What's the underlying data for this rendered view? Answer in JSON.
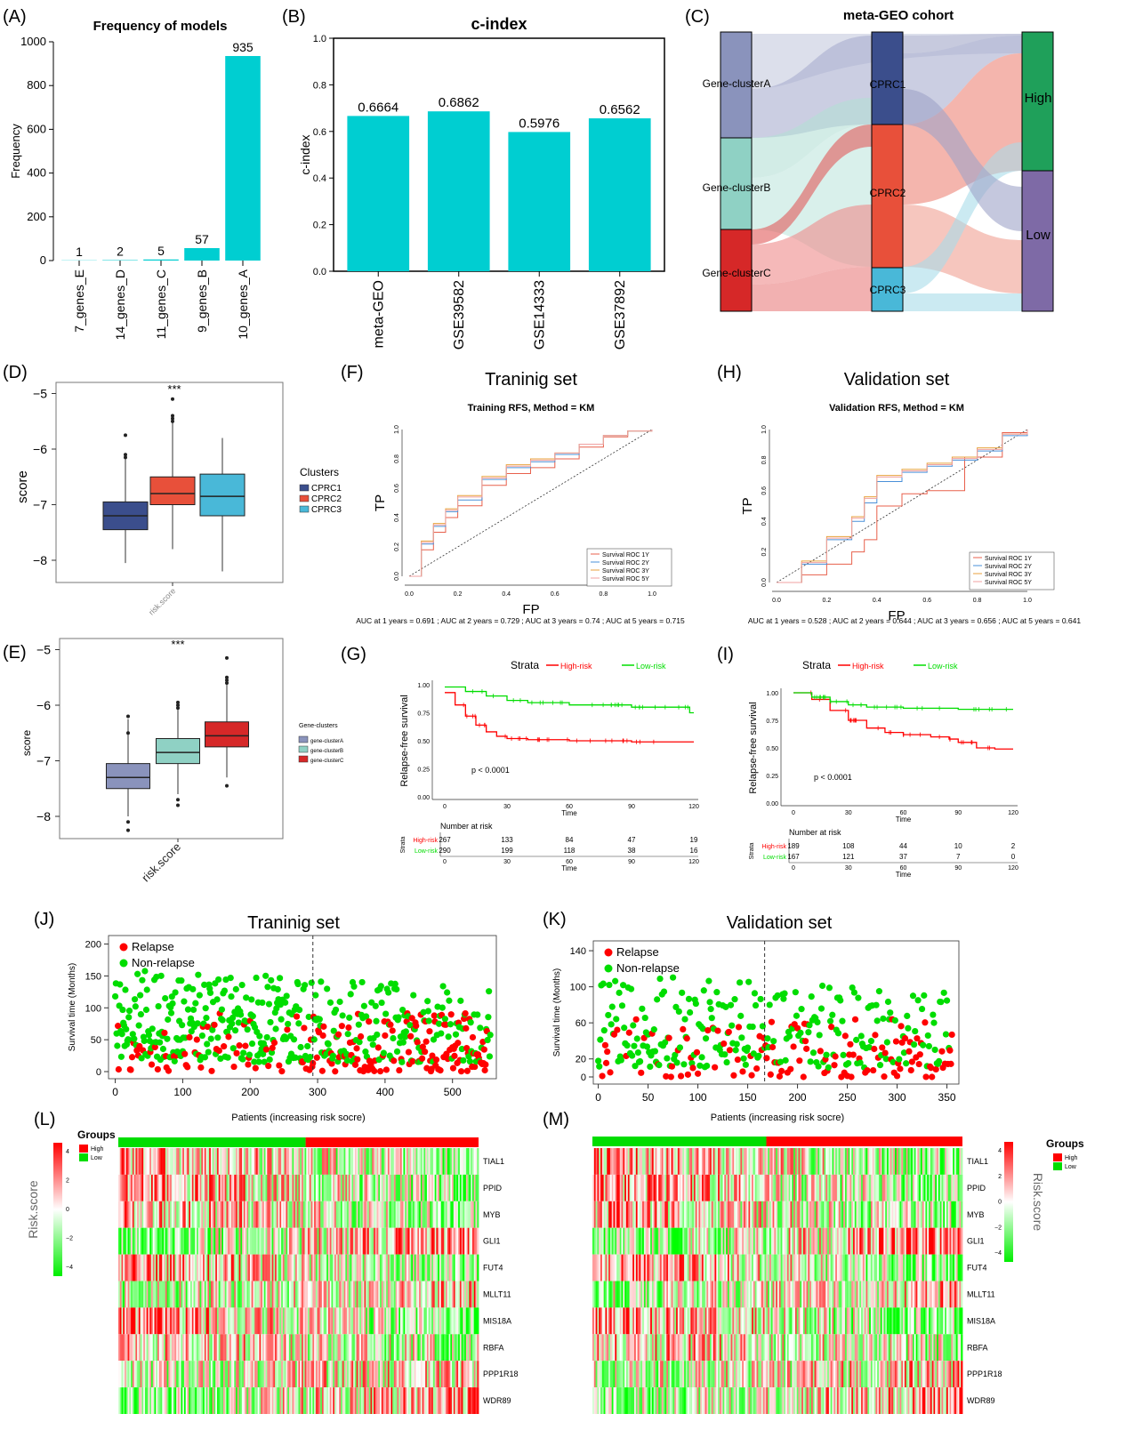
{
  "colors": {
    "cyan": "#00CED1",
    "cprc1": "#3B4E8C",
    "cprc2": "#E8503A",
    "cprc3": "#49B8D8",
    "gA": "#8A93BC",
    "gB": "#8FD1C4",
    "gC": "#D62828",
    "high": "#1FA05A",
    "low": "#7E6AA6",
    "red": "#FF0000",
    "green": "#00DD00"
  },
  "chart_data": [
    {
      "id": "A",
      "type": "bar",
      "panel_label": "(A)",
      "title": "Frequency of models",
      "xlabel": "",
      "ylabel": "Frequency",
      "categories": [
        "7_genes_E",
        "14_genes_D",
        "11_genes_C",
        "9_genes_B",
        "10_genes_A"
      ],
      "values": [
        1,
        2,
        5,
        57,
        935
      ],
      "value_labels": [
        "1",
        "2",
        "5",
        "57",
        "935"
      ],
      "ylim": [
        0,
        1000
      ],
      "yticks": [
        "0",
        "200",
        "400",
        "600",
        "800",
        "1000"
      ]
    },
    {
      "id": "B",
      "type": "bar",
      "panel_label": "(B)",
      "title": "c-index",
      "xlabel": "",
      "ylabel": "c-index",
      "categories": [
        "meta-GEO",
        "GSE39582",
        "GSE14333",
        "GSE37892"
      ],
      "values": [
        0.6664,
        0.6862,
        0.5976,
        0.6562
      ],
      "value_labels": [
        "0.6664",
        "0.6862",
        "0.5976",
        "0.6562"
      ],
      "ylim": [
        0,
        1.0
      ],
      "yticks": [
        "0.0",
        "0.2",
        "0.4",
        "0.6",
        "0.8",
        "1.0"
      ]
    },
    {
      "id": "C",
      "type": "other",
      "panel_label": "(C)",
      "title": "meta-GEO cohort",
      "columns": [
        [
          "Gene-clusterA",
          "Gene-clusterB",
          "Gene-clusterC"
        ],
        [
          "CPRC1",
          "CPRC2",
          "CPRC3"
        ],
        [
          "High",
          "Low"
        ]
      ]
    },
    {
      "id": "D",
      "type": "other",
      "panel_label": "(D)",
      "sig": "***",
      "xlabel": "risk.score",
      "ylabel": "score",
      "ylim": [
        -8.4,
        -4.8
      ],
      "yticks": [
        "−5",
        "−6",
        "−7",
        "−8"
      ],
      "legend_title": "Clusters",
      "legend": [
        "CPRC1",
        "CPRC2",
        "CPRC3"
      ],
      "boxes": [
        {
          "name": "CPRC1",
          "min": -8.05,
          "q1": -7.45,
          "median": -7.2,
          "q3": -6.95,
          "max": -6.1,
          "outliers": [
            -5.75,
            -6.1,
            -6.15
          ]
        },
        {
          "name": "CPRC2",
          "min": -7.8,
          "q1": -7.0,
          "median": -6.8,
          "q3": -6.5,
          "max": -5.45,
          "outliers": [
            -5.1,
            -5.4,
            -5.45,
            -5.5
          ]
        },
        {
          "name": "CPRC3",
          "min": -8.2,
          "q1": -7.2,
          "median": -6.85,
          "q3": -6.45,
          "max": -5.8,
          "outliers": []
        }
      ]
    },
    {
      "id": "E",
      "type": "other",
      "panel_label": "(E)",
      "sig": "***",
      "xlabel": "risk.score",
      "ylabel": "score",
      "ylim": [
        -8.4,
        -4.8
      ],
      "yticks": [
        "−5",
        "−6",
        "−7",
        "−8"
      ],
      "legend_title": "Gene-clusters",
      "legend": [
        "gene-clusterA",
        "gene-clusterB",
        "gene-clusterC"
      ],
      "boxes": [
        {
          "name": "gene-clusterA",
          "min": -8.0,
          "q1": -7.5,
          "median": -7.3,
          "q3": -7.05,
          "max": -6.25,
          "outliers": [
            -6.2,
            -6.5,
            -8.1,
            -8.25
          ]
        },
        {
          "name": "gene-clusterB",
          "min": -7.6,
          "q1": -7.05,
          "median": -6.85,
          "q3": -6.6,
          "max": -6.05,
          "outliers": [
            -5.95,
            -6.0,
            -6.05,
            -7.7,
            -7.8
          ]
        },
        {
          "name": "gene-clusterC",
          "min": -7.3,
          "q1": -6.75,
          "median": -6.55,
          "q3": -6.3,
          "max": -5.6,
          "outliers": [
            -5.15,
            -5.5,
            -5.55,
            -5.6,
            -7.45
          ]
        }
      ]
    },
    {
      "id": "F",
      "type": "line",
      "panel_label": "(F)",
      "title": "Traninig set",
      "subtitle": "Training RFS, Method = KM",
      "xlabel": "FP",
      "ylabel": "TP",
      "xlim": [
        0,
        1
      ],
      "ylim": [
        0,
        1
      ],
      "ticks": [
        "0.0",
        "0.2",
        "0.4",
        "0.6",
        "0.8",
        "1.0"
      ],
      "legend": [
        "Survival ROC 1Y",
        "Survival ROC 2Y",
        "Survival ROC 3Y",
        "Survival ROC 5Y"
      ],
      "series": [
        {
          "name": "Survival ROC 1Y",
          "color": "#E8604C",
          "x": [
            0,
            0.05,
            0.1,
            0.15,
            0.2,
            0.3,
            0.4,
            0.5,
            0.6,
            0.7,
            0.8,
            0.9,
            1
          ],
          "y": [
            0,
            0.18,
            0.3,
            0.4,
            0.48,
            0.62,
            0.7,
            0.74,
            0.8,
            0.88,
            0.95,
            0.99,
            1
          ]
        },
        {
          "name": "Survival ROC 2Y",
          "color": "#4A90D9",
          "x": [
            0,
            0.05,
            0.1,
            0.15,
            0.2,
            0.3,
            0.4,
            0.5,
            0.6,
            0.7,
            0.8,
            0.9,
            1
          ],
          "y": [
            0,
            0.22,
            0.34,
            0.44,
            0.52,
            0.66,
            0.74,
            0.78,
            0.83,
            0.9,
            0.96,
            0.99,
            1
          ]
        },
        {
          "name": "Survival ROC 3Y",
          "color": "#E8A23C",
          "x": [
            0,
            0.05,
            0.1,
            0.15,
            0.2,
            0.3,
            0.4,
            0.5,
            0.6,
            0.7,
            0.8,
            0.9,
            1
          ],
          "y": [
            0,
            0.24,
            0.36,
            0.46,
            0.55,
            0.68,
            0.76,
            0.8,
            0.84,
            0.9,
            0.96,
            0.99,
            1
          ]
        },
        {
          "name": "Survival ROC 5Y",
          "color": "#F0A0A0",
          "x": [
            0,
            0.05,
            0.1,
            0.15,
            0.2,
            0.3,
            0.4,
            0.5,
            0.6,
            0.7,
            0.8,
            0.9,
            1
          ],
          "y": [
            0,
            0.23,
            0.35,
            0.45,
            0.54,
            0.67,
            0.75,
            0.79,
            0.84,
            0.9,
            0.96,
            0.99,
            1
          ]
        }
      ],
      "note": "AUC at 1 years =  0.691 ; AUC at 2 years =  0.729 ; AUC at 3 years =  0.74 ; AUC at 5 years =  0.715"
    },
    {
      "id": "H",
      "type": "line",
      "panel_label": "(H)",
      "title": "Validation set",
      "subtitle": "Validation RFS, Method = KM",
      "xlabel": "FP",
      "ylabel": "TP",
      "xlim": [
        0,
        1
      ],
      "ylim": [
        0,
        1
      ],
      "ticks": [
        "0.0",
        "0.2",
        "0.4",
        "0.6",
        "0.8",
        "1.0"
      ],
      "legend": [
        "Survival ROC 1Y",
        "Survival ROC 2Y",
        "Survival ROC 3Y",
        "Survival ROC 5Y"
      ],
      "series": [
        {
          "name": "Survival ROC 1Y",
          "color": "#E8604C",
          "x": [
            0,
            0.1,
            0.2,
            0.3,
            0.35,
            0.4,
            0.45,
            0.5,
            0.6,
            0.7,
            0.75,
            0.8,
            0.9,
            1
          ],
          "y": [
            0,
            0.05,
            0.12,
            0.2,
            0.28,
            0.5,
            0.5,
            0.58,
            0.6,
            0.6,
            0.82,
            0.82,
            0.98,
            1
          ]
        },
        {
          "name": "Survival ROC 2Y",
          "color": "#4A90D9",
          "x": [
            0,
            0.1,
            0.2,
            0.3,
            0.35,
            0.4,
            0.5,
            0.6,
            0.7,
            0.8,
            0.9,
            1
          ],
          "y": [
            0,
            0.12,
            0.28,
            0.4,
            0.52,
            0.66,
            0.72,
            0.76,
            0.8,
            0.86,
            0.96,
            1
          ]
        },
        {
          "name": "Survival ROC 3Y",
          "color": "#E8A23C",
          "x": [
            0,
            0.1,
            0.2,
            0.3,
            0.35,
            0.4,
            0.5,
            0.6,
            0.7,
            0.8,
            0.9,
            1
          ],
          "y": [
            0,
            0.14,
            0.3,
            0.43,
            0.56,
            0.7,
            0.74,
            0.78,
            0.82,
            0.88,
            0.97,
            1
          ]
        },
        {
          "name": "Survival ROC 5Y",
          "color": "#F0A0A0",
          "x": [
            0,
            0.1,
            0.2,
            0.3,
            0.35,
            0.4,
            0.5,
            0.6,
            0.7,
            0.8,
            0.9,
            1
          ],
          "y": [
            0,
            0.13,
            0.29,
            0.42,
            0.55,
            0.69,
            0.73,
            0.77,
            0.81,
            0.87,
            0.97,
            1
          ]
        }
      ],
      "note": "AUC at 1 years =  0.528 ; AUC at 2 years =  0.644 ; AUC at 3 years =  0.656 ; AUC at 5 years =  0.641"
    },
    {
      "id": "G",
      "type": "line",
      "panel_label": "(G)",
      "legend_title": "Strata",
      "legend": [
        "High-risk",
        "Low-risk"
      ],
      "xlabel": "Time",
      "ylabel": "Relapse-free survival",
      "xlim": [
        0,
        120
      ],
      "ylim": [
        0,
        1
      ],
      "xticks": [
        "0",
        "30",
        "60",
        "90",
        "120"
      ],
      "yticks": [
        "0.00",
        "0.25",
        "0.50",
        "0.75",
        "1.00"
      ],
      "pvalue": "p < 0.0001",
      "series": [
        {
          "name": "High-risk",
          "x": [
            0,
            5,
            10,
            15,
            20,
            25,
            30,
            40,
            60,
            90,
            120
          ],
          "y": [
            0.93,
            0.82,
            0.72,
            0.64,
            0.58,
            0.54,
            0.52,
            0.51,
            0.5,
            0.49,
            0.49
          ]
        },
        {
          "name": "Low-risk",
          "x": [
            0,
            10,
            20,
            30,
            40,
            60,
            90,
            115,
            118,
            120
          ],
          "y": [
            0.98,
            0.94,
            0.9,
            0.86,
            0.84,
            0.82,
            0.8,
            0.8,
            0.75,
            0.75
          ]
        }
      ],
      "risk_table": {
        "title": "Number at risk",
        "strata_label": "Strata",
        "xlabel": "Time",
        "rows": [
          {
            "label": "High-risk",
            "values": [
              "267",
              "133",
              "84",
              "47",
              "19"
            ]
          },
          {
            "label": "Low-risk",
            "values": [
              "290",
              "199",
              "118",
              "38",
              "16"
            ]
          }
        ]
      }
    },
    {
      "id": "I",
      "type": "line",
      "panel_label": "(I)",
      "legend_title": "Strata",
      "legend": [
        "High-risk",
        "Low-risk"
      ],
      "xlabel": "Time",
      "ylabel": "Relapse-free survival",
      "xlim": [
        0,
        120
      ],
      "ylim": [
        0,
        1
      ],
      "xticks": [
        "0",
        "30",
        "60",
        "90",
        "120"
      ],
      "yticks": [
        "0.00",
        "0.25",
        "0.50",
        "0.75",
        "1.00"
      ],
      "pvalue": "p < 0.0001",
      "series": [
        {
          "name": "High-risk",
          "x": [
            0,
            10,
            20,
            30,
            40,
            50,
            60,
            75,
            85,
            90,
            100,
            110,
            120
          ],
          "y": [
            1.0,
            0.94,
            0.84,
            0.75,
            0.68,
            0.64,
            0.62,
            0.6,
            0.58,
            0.55,
            0.5,
            0.49,
            0.49
          ]
        },
        {
          "name": "Low-risk",
          "x": [
            0,
            10,
            20,
            30,
            40,
            60,
            90,
            120
          ],
          "y": [
            1.0,
            0.96,
            0.92,
            0.89,
            0.87,
            0.86,
            0.85,
            0.85
          ]
        }
      ],
      "risk_table": {
        "title": "Number at risk",
        "strata_label": "Strata",
        "xlabel": "Time",
        "rows": [
          {
            "label": "High-risk",
            "values": [
              "189",
              "108",
              "44",
              "10",
              "2"
            ]
          },
          {
            "label": "Low-risk",
            "values": [
              "167",
              "121",
              "37",
              "7",
              "0"
            ]
          }
        ]
      }
    },
    {
      "id": "J",
      "type": "scatter",
      "panel_label": "(J)",
      "title": "Traninig set",
      "xlabel": "",
      "ylabel": "Survival time (Months)",
      "xlim": [
        -10,
        565
      ],
      "ylim": [
        0,
        205
      ],
      "xticks": [
        "0",
        "100",
        "200",
        "300",
        "400",
        "500"
      ],
      "yticks": [
        "0",
        "50",
        "100",
        "150",
        "200"
      ],
      "cutoff": 293,
      "n": 557,
      "legend": [
        "Relapse",
        "Non-relapse"
      ]
    },
    {
      "id": "K",
      "type": "scatter",
      "panel_label": "(K)",
      "title": "Validation set",
      "xlabel": "",
      "ylabel": "Survival time (Months)",
      "xlim": [
        -5,
        362
      ],
      "ylim": [
        0,
        145
      ],
      "xticks": [
        "0",
        "50",
        "100",
        "150",
        "200",
        "250",
        "300",
        "350"
      ],
      "yticks": [
        "0",
        "20",
        "60",
        "100",
        "140"
      ],
      "cutoff": 167,
      "n": 356,
      "legend": [
        "Relapse",
        "Non-relapse"
      ]
    },
    {
      "id": "L",
      "type": "heatmap",
      "panel_label": "(L)",
      "title": "Patients (increasing risk socre)",
      "genes": [
        "TIAL1",
        "PPID",
        "MYB",
        "GLI1",
        "FUT4",
        "MLLT11",
        "MIS18A",
        "RBFA",
        "PPP1R18",
        "WDR89"
      ],
      "legend_title": "Groups",
      "groups": [
        "High",
        "Low"
      ],
      "colorbar_label": "Risk.score",
      "colorbar_ticks": [
        "4",
        "2",
        "0",
        "−2",
        "−4"
      ]
    },
    {
      "id": "M",
      "type": "heatmap",
      "panel_label": "(M)",
      "title": "Patients (increasing risk socre)",
      "genes": [
        "TIAL1",
        "PPID",
        "MYB",
        "GLI1",
        "FUT4",
        "MLLT11",
        "MIS18A",
        "RBFA",
        "PPP1R18",
        "WDR89"
      ],
      "legend_title": "Groups",
      "groups": [
        "High",
        "Low"
      ],
      "colorbar_label": "Risk.score",
      "colorbar_ticks": [
        "4",
        "2",
        "0",
        "−2",
        "−4"
      ]
    }
  ]
}
